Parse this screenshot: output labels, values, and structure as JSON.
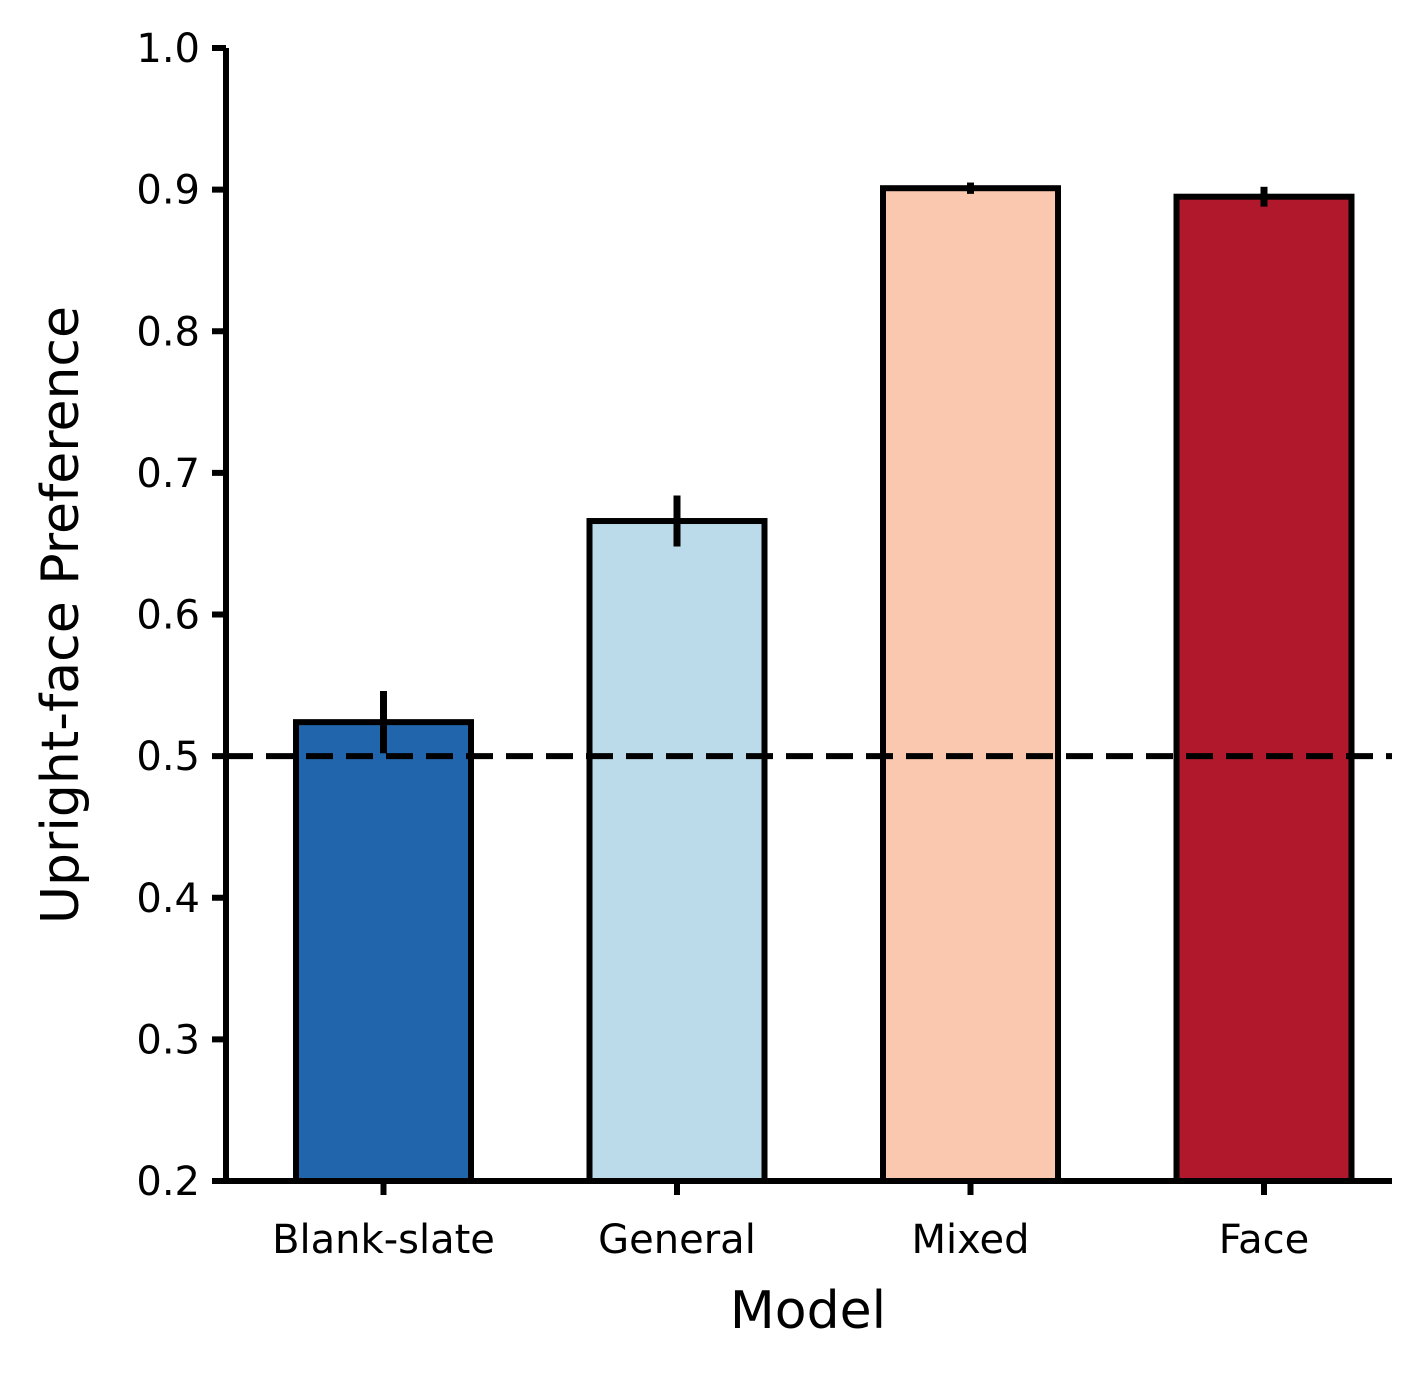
{
  "chart_data": {
    "type": "bar",
    "xlabel": "Model",
    "ylabel": "Upright-face Preference",
    "categories": [
      "Blank-slate",
      "General",
      "Mixed",
      "Face"
    ],
    "values": [
      0.524,
      0.666,
      0.901,
      0.895
    ],
    "errors": [
      0.022,
      0.018,
      0.004,
      0.007
    ],
    "colors": [
      "#2166ac",
      "#bcdbea",
      "#f9c8ae",
      "#b2182b"
    ],
    "ylim": [
      0.2,
      1.0
    ],
    "yticks": [
      "0.2",
      "0.3",
      "0.4",
      "0.5",
      "0.6",
      "0.7",
      "0.8",
      "0.9",
      "1.0"
    ],
    "reference_line": {
      "y": 0.5,
      "style": "dashed"
    },
    "grid": false
  }
}
